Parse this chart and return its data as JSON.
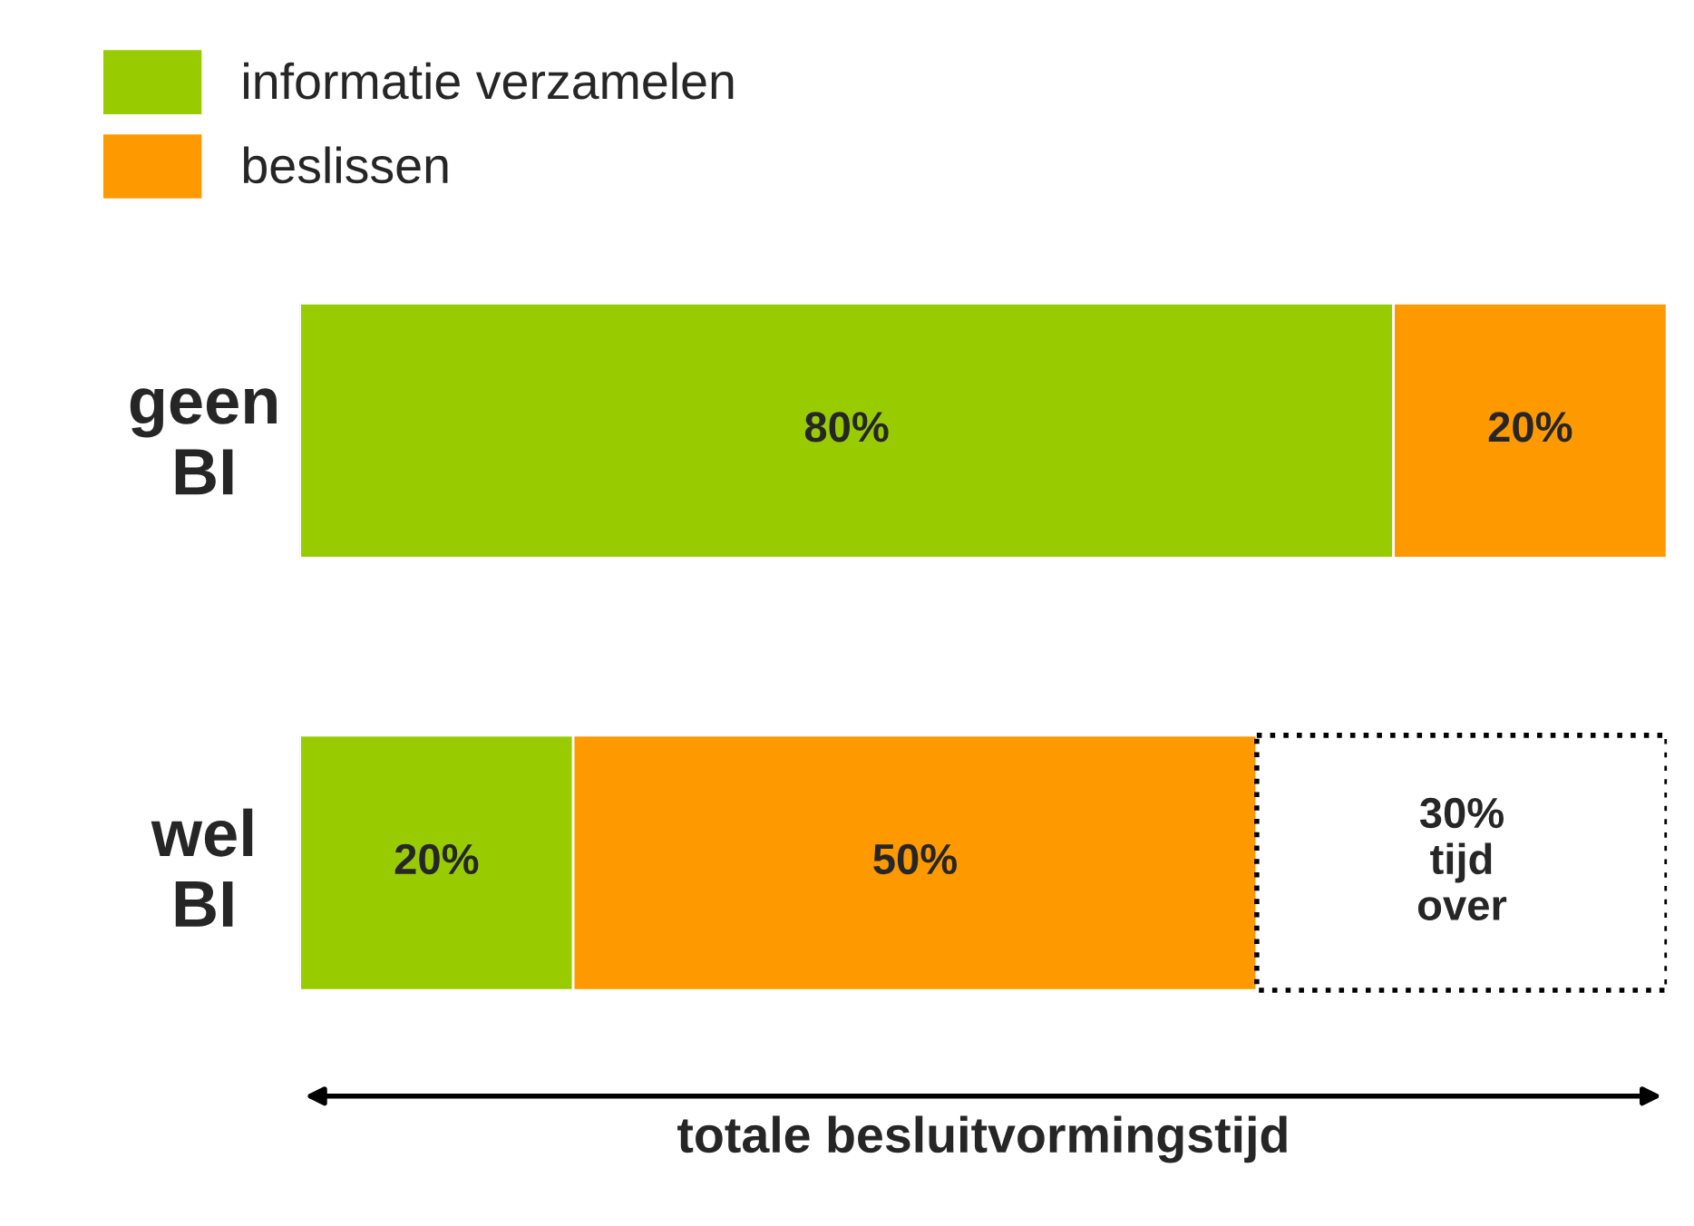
{
  "chart_data": {
    "type": "bar",
    "orientation": "horizontal",
    "stacked": true,
    "categories": [
      "geen\nBI",
      "wel\nBI"
    ],
    "series": [
      {
        "name": "informatie verzamelen",
        "color": "#99cc00",
        "values": [
          80,
          20
        ],
        "value_labels": [
          "80%",
          "20%"
        ]
      },
      {
        "name": "beslissen",
        "color": "#ff9900",
        "values": [
          20,
          50
        ],
        "value_labels": [
          "20%",
          "50%"
        ]
      },
      {
        "color": "#ffffff",
        "values": [
          null,
          30
        ],
        "value_labels": [
          null,
          "30%\ntijd\nover"
        ],
        "line_style": "dotted"
      }
    ],
    "annotations": [
      "totale besluitvormingstijd"
    ],
    "legend": "top left",
    "grid": false
  }
}
